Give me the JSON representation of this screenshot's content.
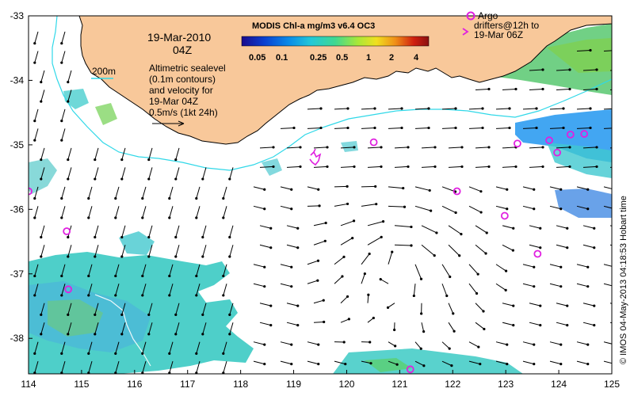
{
  "header": {
    "date": "19-Mar-2010",
    "time": "04Z"
  },
  "legend": {
    "contour_label": "200m",
    "description_lines": [
      "Altimetric sealevel",
      "(0.1m contours)",
      "and velocity for",
      "19-Mar 04Z",
      "0.5m/s (1kt 24h)"
    ]
  },
  "colorbar": {
    "title": "MODIS Chl-a mg/m3 v6.4 OC3",
    "labels": [
      "0.05",
      "0.1",
      "0.25",
      "0.5",
      "1",
      "2",
      "4"
    ],
    "colors": [
      "#1a0a8c",
      "#0a3fd0",
      "#0a8ae8",
      "#22c8d8",
      "#40d890",
      "#a8e838",
      "#f0e020",
      "#f09018",
      "#d02010",
      "#8a1010"
    ]
  },
  "argo_legend": {
    "circle_label": "Argo",
    "line1": "drifters@12h to",
    "line2": "19-Mar 06Z"
  },
  "axes": {
    "x_ticks": [
      "114",
      "115",
      "116",
      "117",
      "118",
      "119",
      "120",
      "121",
      "122",
      "123",
      "124",
      "125"
    ],
    "y_ticks": [
      "-33",
      "-34",
      "-35",
      "-36",
      "-37",
      "-38"
    ],
    "xlim": [
      114,
      125
    ],
    "ylim": [
      -38.55,
      -33
    ]
  },
  "credit": "© IMOS 04-May-2013 04:18:53 Hobart time",
  "colors": {
    "land": "#f8c89a",
    "coast": "#000000",
    "contour_200m": "#30d8e8",
    "argo": "#e020e0",
    "arrow": "#000000"
  },
  "argo_floats": [
    {
      "lon": 114.0,
      "lat": -35.72
    },
    {
      "lon": 114.72,
      "lat": -36.34
    },
    {
      "lon": 114.75,
      "lat": -37.24
    },
    {
      "lon": 120.51,
      "lat": -34.96
    },
    {
      "lon": 122.08,
      "lat": -35.72
    },
    {
      "lon": 122.98,
      "lat": -36.1
    },
    {
      "lon": 123.22,
      "lat": -34.98
    },
    {
      "lon": 123.6,
      "lat": -36.69
    },
    {
      "lon": 123.97,
      "lat": -35.12
    },
    {
      "lon": 123.82,
      "lat": -34.93
    },
    {
      "lon": 124.22,
      "lat": -34.84
    },
    {
      "lon": 124.48,
      "lat": -34.83
    },
    {
      "lon": 121.2,
      "lat": -38.48
    }
  ]
}
